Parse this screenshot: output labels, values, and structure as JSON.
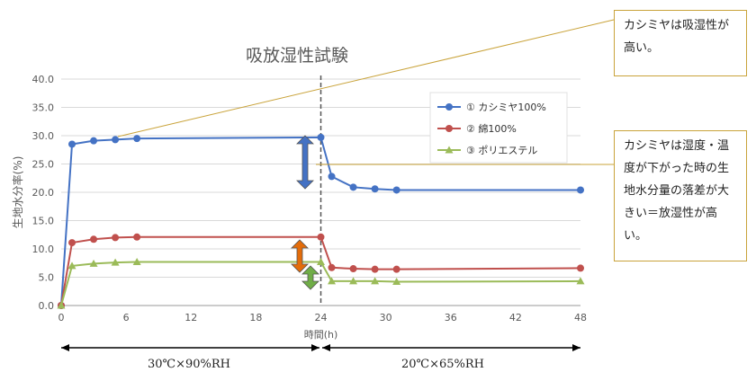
{
  "chart_data": {
    "type": "line",
    "title": "吸放湿性試験",
    "xlabel": "時間(h)",
    "ylabel": "生地水分率(%)",
    "xlim": [
      0,
      48
    ],
    "ylim": [
      0,
      40
    ],
    "x_ticks": [
      "0",
      "6",
      "12",
      "18",
      "24",
      "30",
      "36",
      "42",
      "48"
    ],
    "y_ticks": [
      "0.0",
      "5.0",
      "10.0",
      "15.0",
      "20.0",
      "25.0",
      "30.0",
      "35.0",
      "40.0"
    ],
    "legend_position": "top-right",
    "divider_x": 24,
    "series": [
      {
        "name": "① カシミヤ100%",
        "color": "#4472c4",
        "marker": "circle",
        "x": [
          0,
          1,
          3,
          5,
          7,
          24,
          25,
          27,
          29,
          31,
          48
        ],
        "y": [
          0,
          28.5,
          29.1,
          29.3,
          29.5,
          29.7,
          22.8,
          20.9,
          20.6,
          20.4,
          20.4
        ]
      },
      {
        "name": "② 綿100%",
        "color": "#c0504d",
        "marker": "circle",
        "x": [
          0,
          1,
          3,
          5,
          7,
          24,
          25,
          27,
          29,
          31,
          48
        ],
        "y": [
          0,
          11.1,
          11.7,
          12.0,
          12.1,
          12.1,
          6.7,
          6.5,
          6.4,
          6.4,
          6.6
        ]
      },
      {
        "name": "③ ポリエステル",
        "color": "#9bbb59",
        "marker": "triangle",
        "x": [
          0,
          1,
          3,
          5,
          7,
          24,
          25,
          27,
          29,
          31,
          48
        ],
        "y": [
          0,
          7.0,
          7.4,
          7.6,
          7.7,
          7.7,
          4.3,
          4.3,
          4.3,
          4.2,
          4.3
        ]
      }
    ],
    "annotations": [
      {
        "text": "カシミヤは吸湿性が高い。"
      },
      {
        "text": "カシミヤは湿度・温度が下がった時の生地水分量の落差が大きい＝放湿性が高い。"
      }
    ],
    "conditions": [
      "30℃×90%RH",
      "20℃×65%RH"
    ]
  }
}
